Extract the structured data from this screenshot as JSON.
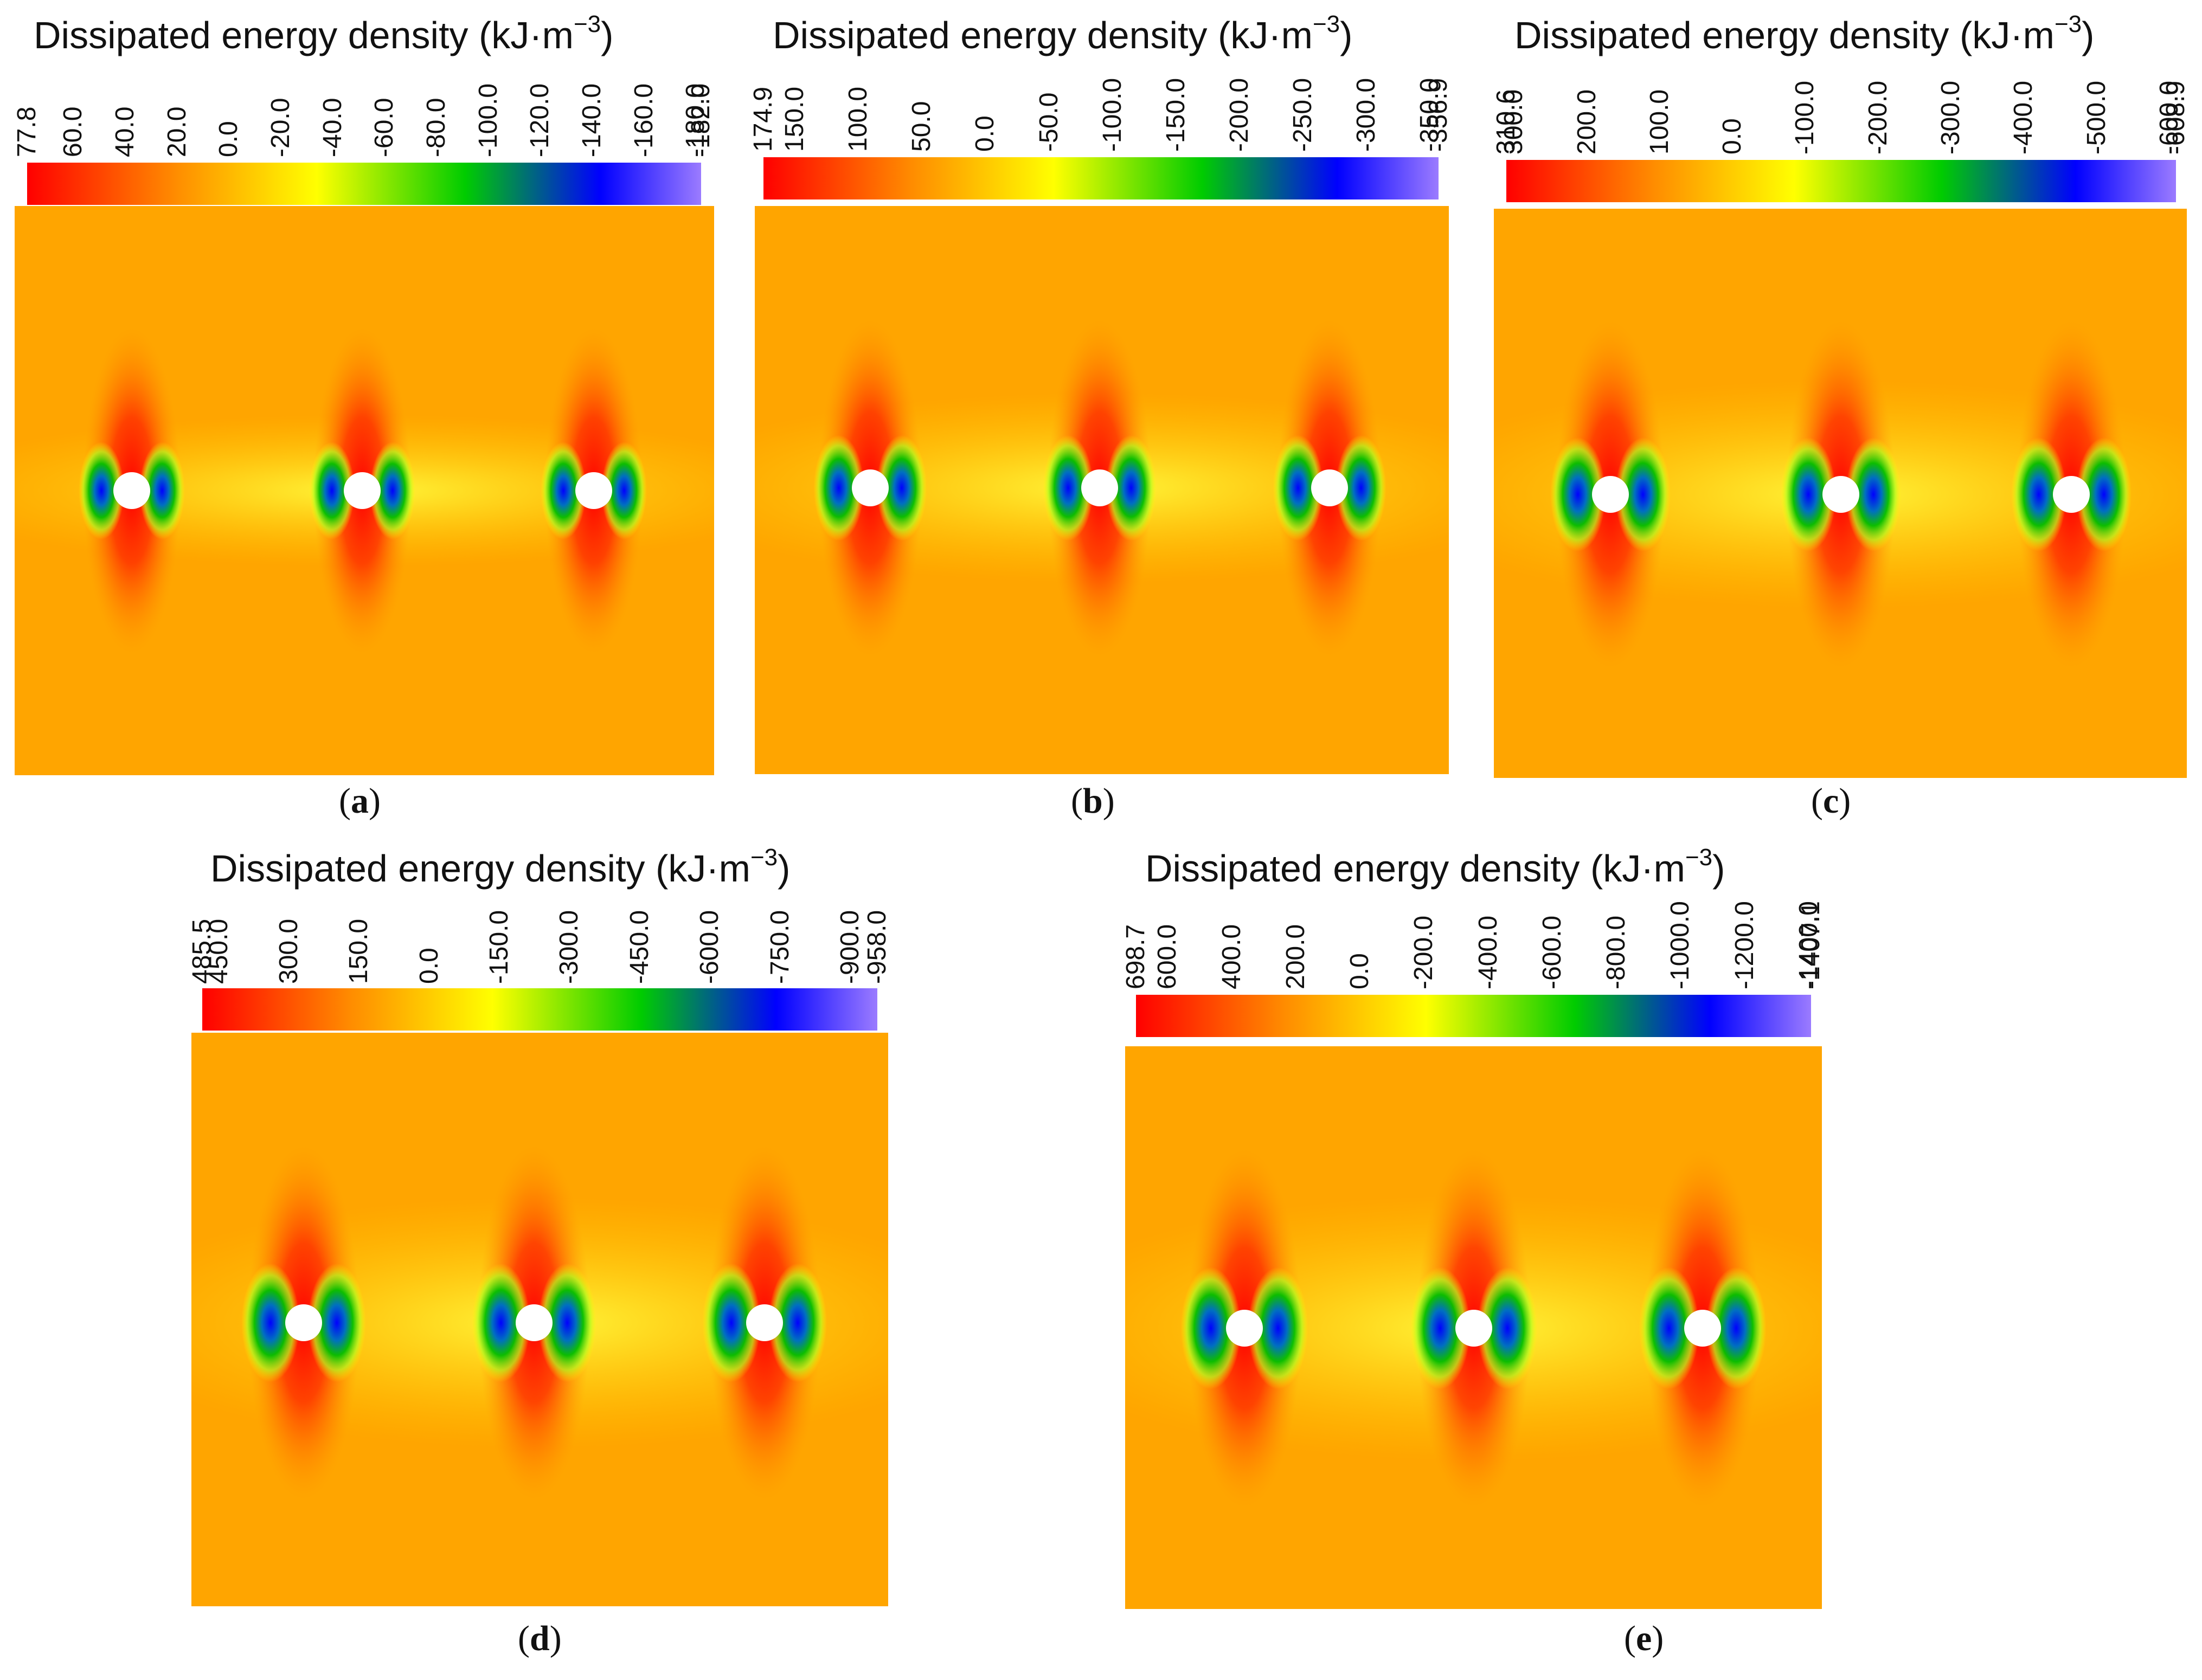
{
  "figure": {
    "panels": [
      {
        "id": "a",
        "title": "Dissipated energy density (kJ·m",
        "title_exp": "−3",
        "title_close": ")",
        "caption_open": "(",
        "caption_letter": "a",
        "caption_close": ")",
        "colorbar_ticks": [
          "77.8",
          "60.0",
          "40.0",
          "20.0",
          "0.0",
          "-20.0",
          "-40.0",
          "-60.0",
          "-80.0",
          "-100.0",
          "-120.0",
          "-140.0",
          "-160.0",
          "-180.0",
          "-182.0"
        ],
        "colorbar_range": [
          77.8,
          -182.0
        ]
      },
      {
        "id": "b",
        "title": "Dissipated energy density (kJ·m",
        "title_exp": "−3",
        "title_close": ")",
        "caption_open": "(",
        "caption_letter": "b",
        "caption_close": ")",
        "colorbar_ticks": [
          "174.9",
          "150.0",
          "100.0",
          "50.0",
          "0.0",
          "-50.0",
          "-100.0",
          "-150.0",
          "-200.0",
          "-250.0",
          "-300.0",
          "-350.0",
          "-356.9"
        ],
        "colorbar_range": [
          174.9,
          -356.9
        ]
      },
      {
        "id": "c",
        "title": "Dissipated energy density (kJ·m",
        "title_exp": "−3",
        "title_close": ")",
        "caption_open": "(",
        "caption_letter": "c",
        "caption_close": ")",
        "colorbar_ticks": [
          "310.6",
          "300.0",
          "200.0",
          "100.0",
          "0.0",
          "-100.0",
          "-200.0",
          "-300.0",
          "-400.0",
          "-500.0",
          "-600.0",
          "-608.9"
        ],
        "colorbar_range": [
          310.6,
          -608.9
        ]
      },
      {
        "id": "d",
        "title": "Dissipated energy density (kJ·m",
        "title_exp": "−3",
        "title_close": ")",
        "caption_open": "(",
        "caption_letter": "d",
        "caption_close": ")",
        "colorbar_ticks": [
          "485.5",
          "450.0",
          "300.0",
          "150.0",
          "0.0",
          "-150.0",
          "-300.0",
          "-450.0",
          "-600.0",
          "-750.0",
          "-900.0",
          "-958.0"
        ],
        "colorbar_range": [
          485.5,
          -958.0
        ]
      },
      {
        "id": "e",
        "title": "Dissipated energy density (kJ·m",
        "title_exp": "−3",
        "title_close": ")",
        "caption_open": "(",
        "caption_letter": "e",
        "caption_close": ")",
        "colorbar_ticks": [
          "698.7",
          "600.0",
          "400.0",
          "200.0",
          "0.0",
          "-200.0",
          "-400.0",
          "-600.0",
          "-800.0",
          "-1000.0",
          "-1200.0",
          "-1400.0",
          "-1407.1"
        ],
        "colorbar_range": [
          698.7,
          -1407.1
        ]
      }
    ],
    "colors": {
      "cmap": [
        "#ff0000",
        "#ff8c00",
        "#ffff00",
        "#00cc00",
        "#0000ff",
        "#9b7bff"
      ],
      "background_field": "#ffa500",
      "hole": "#ffffff"
    }
  }
}
